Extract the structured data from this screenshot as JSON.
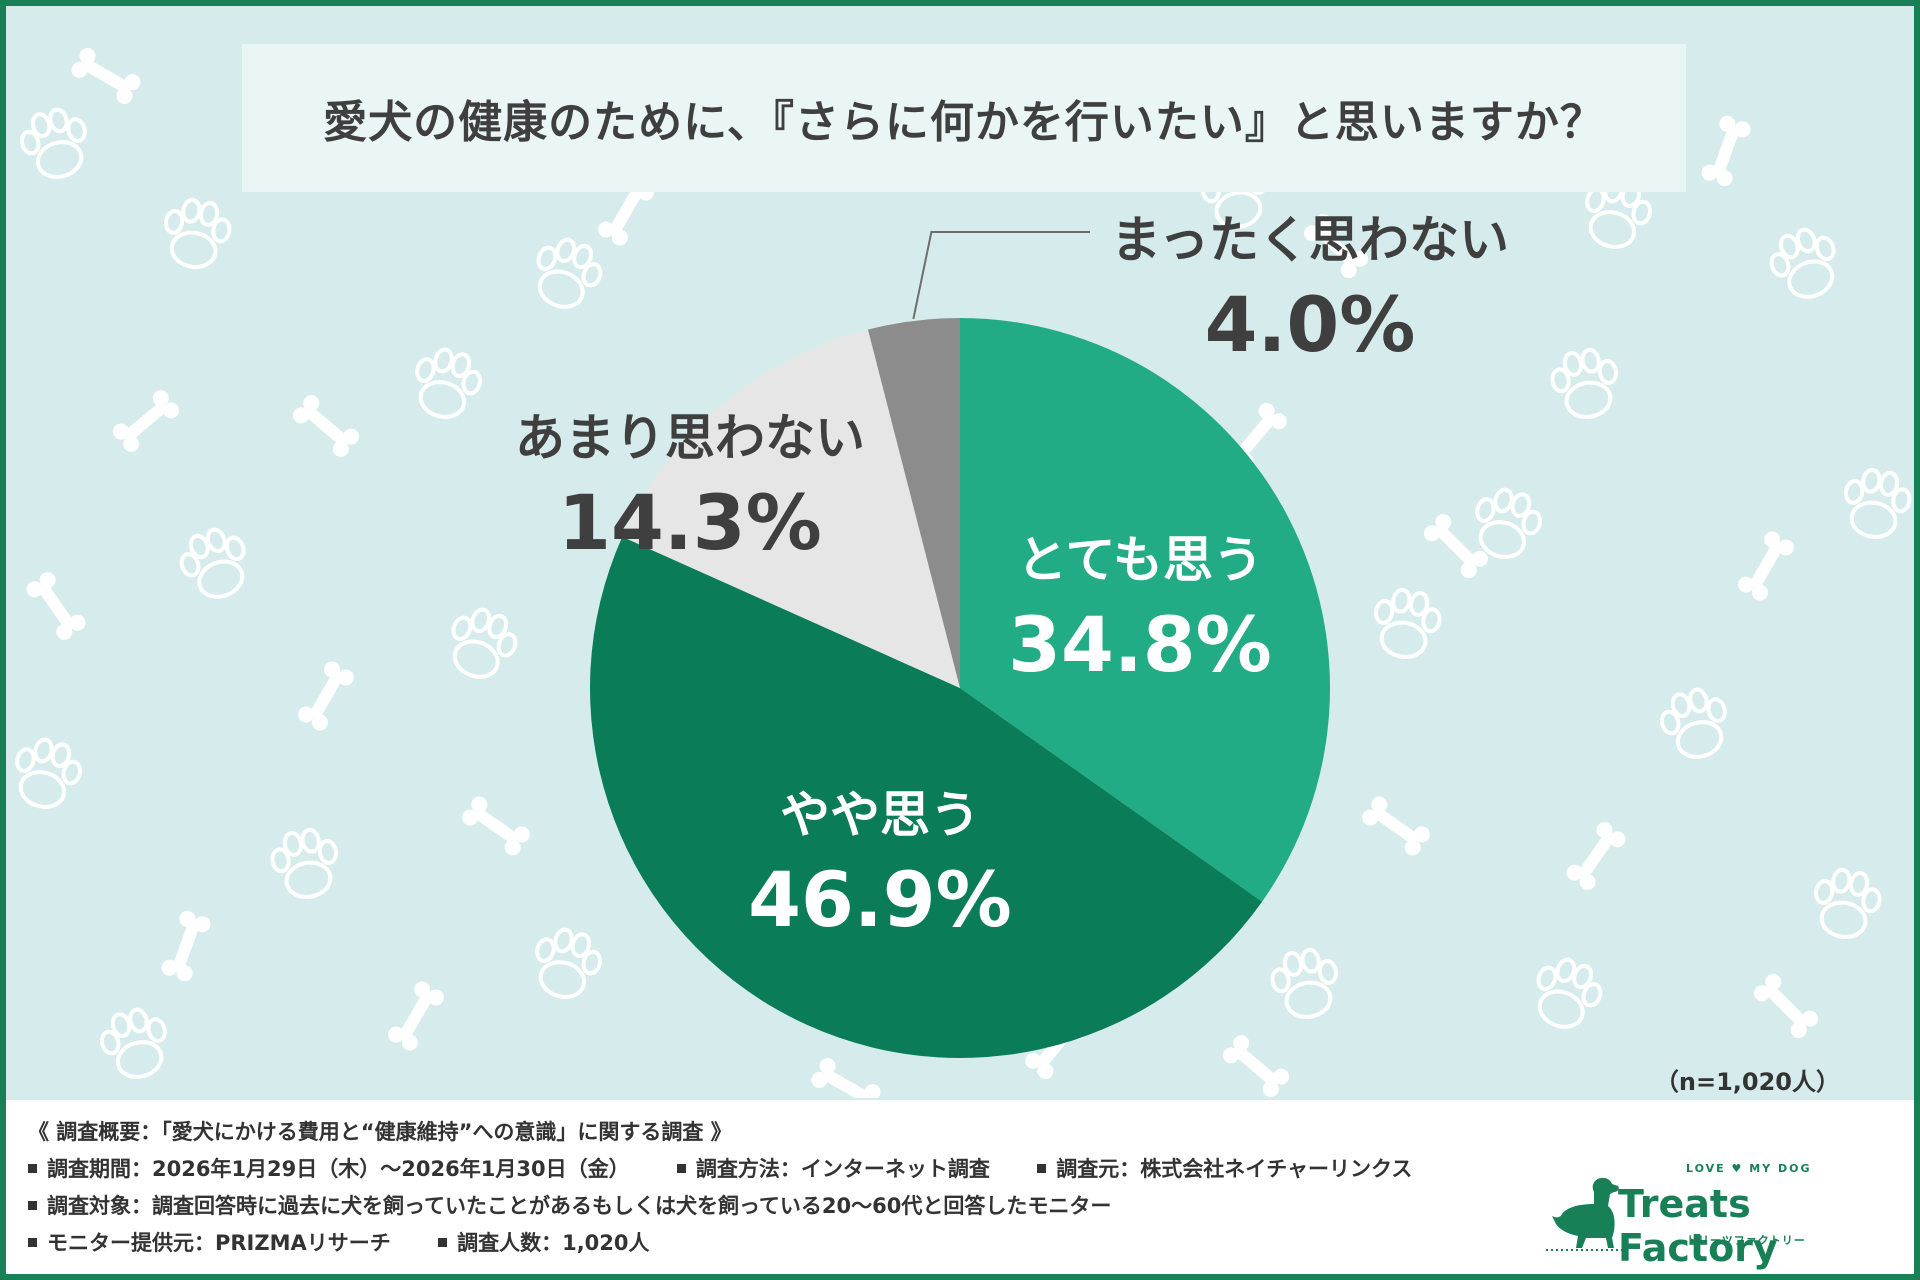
{
  "title": "愛犬の健康のために、『さらに何かを行いたい』と思いますか？",
  "sample_note": "（n=1,020人）",
  "chart_data": {
    "type": "pie",
    "title": "愛犬の健康のために、『さらに何かを行いたい』と思いますか？",
    "unit": "%",
    "start": "12 o'clock, clockwise",
    "slices": [
      {
        "label": "とても思う",
        "value": 34.8,
        "display": "34.8%",
        "color": "#22ac85",
        "text_color": "#ffffff"
      },
      {
        "label": "やや思う",
        "value": 46.9,
        "display": "46.9%",
        "color": "#0b7c58",
        "text_color": "#ffffff"
      },
      {
        "label": "あまり思わない",
        "value": 14.3,
        "display": "14.3%",
        "color": "#e6e6e6",
        "text_color": "#3f3f3f"
      },
      {
        "label": "まったく思わない",
        "value": 4.0,
        "display": "4.0%",
        "color": "#8c8c8c",
        "text_color": "#3f3f3f"
      }
    ]
  },
  "footer": {
    "line1": "《 調査概要：「愛犬にかける費用と“健康維持”への意識」に関する調査 》",
    "period": "調査期間：2026年1月29日（木）～2026年1月30日（金）",
    "method": "調査方法：インターネット調査",
    "source": "調査元：株式会社ネイチャーリンクス",
    "target": "調査対象：調査回答時に過去に犬を飼っていたことがあるもしくは犬を飼っている20～60代と回答したモニター",
    "provider": "モニター提供元：PRIZMAリサーチ",
    "count": "調査人数：1,020人"
  },
  "logo": {
    "tagline": "LOVE ♥ MY DOG",
    "name": "Treats Factory",
    "kana": "トリーツファクトリー"
  },
  "colors": {
    "border": "#178056",
    "background": "#d6ecec"
  }
}
